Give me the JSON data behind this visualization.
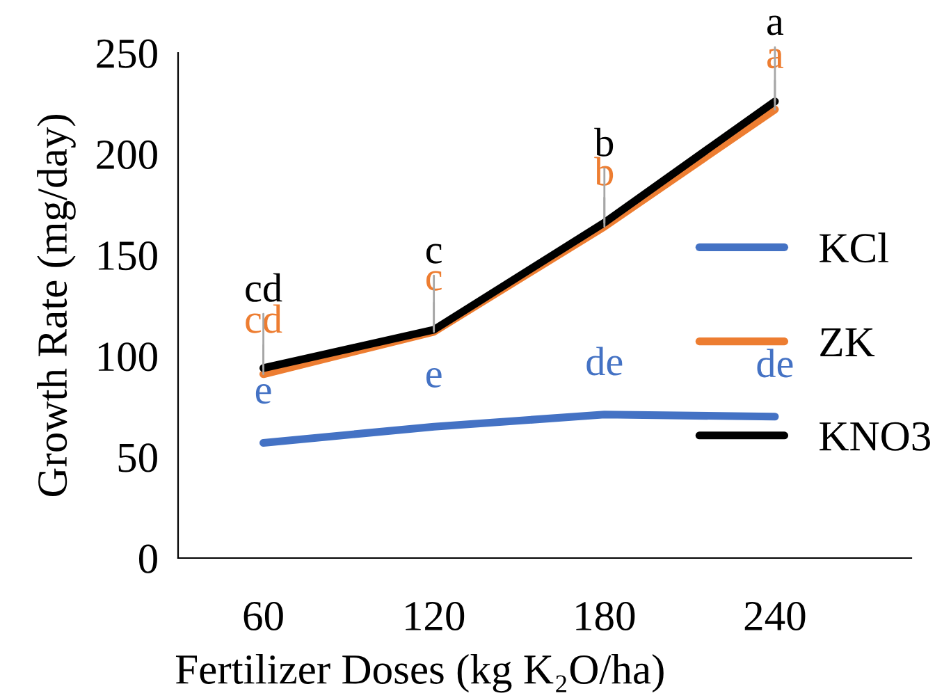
{
  "chart_data": {
    "type": "line",
    "xlabel": "Fertilizer Doses (kg K₂O/ha)",
    "ylabel": "Growth Rate (mg/day)",
    "categories": [
      "60",
      "120",
      "180",
      "240"
    ],
    "series": [
      {
        "name": "KCl",
        "color": "#4472c4",
        "values": [
          57,
          65,
          71,
          70
        ]
      },
      {
        "name": "ZK",
        "color": "#ed7d31",
        "values": [
          91,
          112,
          164,
          222
        ]
      },
      {
        "name": "KNO3",
        "color": "#000000",
        "values": [
          94,
          113,
          166,
          226
        ]
      }
    ],
    "ylim": [
      0,
      250
    ],
    "yticks": [
      0,
      50,
      100,
      150,
      200,
      250
    ],
    "grid": false,
    "legend": "right",
    "marker": "none",
    "line_style": "solid",
    "annotations": [
      {
        "text": "e",
        "x": "60",
        "y": 57
      },
      {
        "text": "e",
        "x": "120",
        "y": 65
      },
      {
        "text": "de",
        "x": "180",
        "y": 71
      },
      {
        "text": "de",
        "x": "240",
        "y": 70
      },
      {
        "text": "cd",
        "x": "60",
        "y": 91
      },
      {
        "text": "c",
        "x": "120",
        "y": 112
      },
      {
        "text": "b",
        "x": "180",
        "y": 164
      },
      {
        "text": "a",
        "x": "240",
        "y": 222
      },
      {
        "text": "cd",
        "x": "60",
        "y": 94
      },
      {
        "text": "c",
        "x": "120",
        "y": 113
      },
      {
        "text": "b",
        "x": "180",
        "y": 166
      },
      {
        "text": "a",
        "x": "240",
        "y": 226
      }
    ]
  }
}
